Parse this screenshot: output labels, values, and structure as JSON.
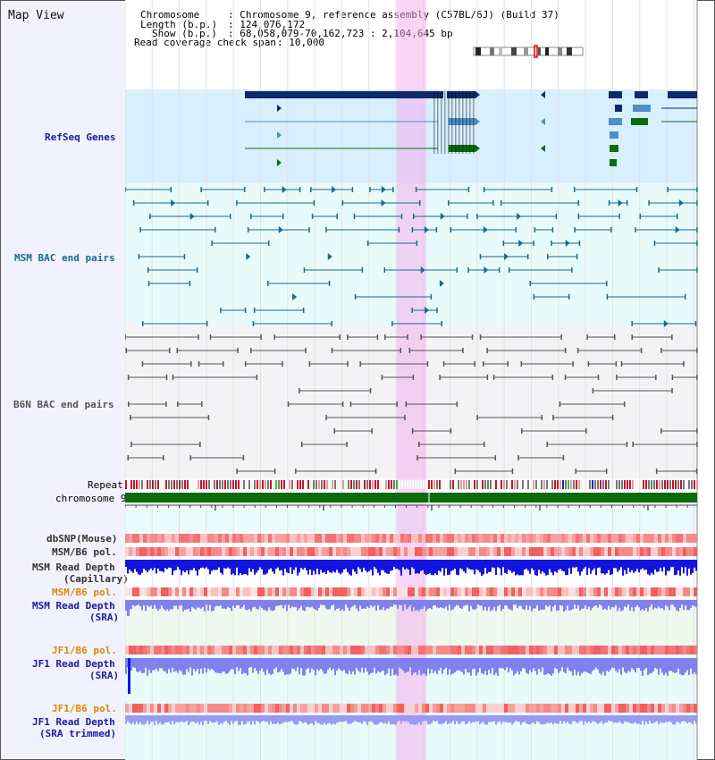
{
  "app": {
    "title": "Map View"
  },
  "header": {
    "chromosome_label": "Chromosome",
    "chromosome_value": ": Chromosome 9, reference assembly (C57BL/6J) (Build 37)",
    "length_label": "Length (b.p.)",
    "length_value": ": 124,076,172",
    "show_label": "Show (b.p.)",
    "show_value": ": 68,058,079-70,162,723 : 2,104,645 bp",
    "coverage_label": "Read coverage check span",
    "coverage_value": ": 10,000"
  },
  "tracks": {
    "refseq": "RefSeq Genes",
    "msm_bac": "MSM BAC end pairs",
    "b6n_bac": "B6N BAC end pairs",
    "repeat": "Repeat",
    "chromosome": "chromosome 9",
    "dbsnp": "dbSNP(Mouse)",
    "msm_b6_pol": "MSM/B6 pol.",
    "msm_read_depth_cap_1": "MSM Read Depth",
    "msm_read_depth_cap_2": "(Capillary)",
    "msm_b6_pol_2": "MSM/B6 pol.",
    "msm_read_depth_sra_1": "MSM Read Depth",
    "msm_read_depth_sra_2": "(SRA)",
    "jf1_b6_pol": "JF1/B6 pol.",
    "jf1_read_depth_1": "JF1 Read Depth",
    "jf1_read_depth_2": "(SRA)",
    "jf1_b6_pol_2": "JF1/B6 pol.",
    "jf1_read_depth_trim_1": "JF1 Read Depth",
    "jf1_read_depth_trim_2": "(SRA trimmed)"
  },
  "axis": {
    "ticks": [
      "68400000",
      "68800000",
      "69200000",
      "69600000",
      "70000000"
    ]
  },
  "colors": {
    "refseq_dark": "#0d2b6b",
    "refseq_light": "#4a90c4",
    "refseq_green": "#0a6e0a",
    "msm_bac": "#1a6a8a",
    "b6n_bac": "#555555",
    "chromosome": "#0a6b0a",
    "depth_blue": "#1414e0",
    "depth_light": "#8080ee",
    "highlight": "#f5aaeb"
  }
}
